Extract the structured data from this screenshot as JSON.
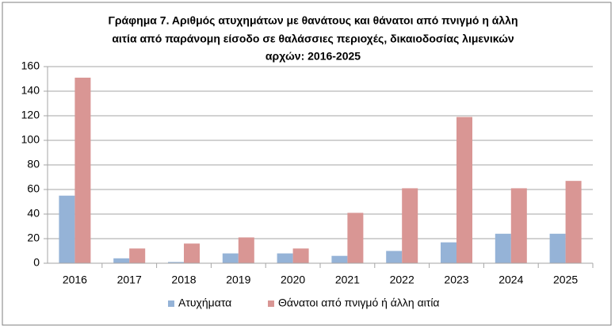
{
  "chart_data": {
    "type": "bar",
    "title": [
      "Γράφημα 7. Αριθμός ατυχημάτων με θανάτους και θάνατοι από πνιγμό η άλλη",
      "αιτία από παράνομη είσοδο σε θαλάσσιες περιοχές, δικαιοδοσίας λιμενικών",
      "αρχών: 2016-2025"
    ],
    "categories": [
      "2016",
      "2017",
      "2018",
      "2019",
      "2020",
      "2021",
      "2022",
      "2023",
      "2024",
      "2025"
    ],
    "series": [
      {
        "name": "Ατυχήματα",
        "color": "#95b3d7",
        "values": [
          55,
          4,
          1,
          8,
          8,
          6,
          10,
          17,
          24,
          24
        ]
      },
      {
        "name": "Θάνατοι από πνιγμό ή άλλη αιτία",
        "color": "#d99694",
        "values": [
          151,
          12,
          16,
          21,
          12,
          41,
          61,
          119,
          61,
          67
        ]
      }
    ],
    "ylim": [
      0,
      160
    ],
    "yticks": [
      0,
      20,
      40,
      60,
      80,
      100,
      120,
      140,
      160
    ],
    "grid": true,
    "legend": "bottom"
  }
}
